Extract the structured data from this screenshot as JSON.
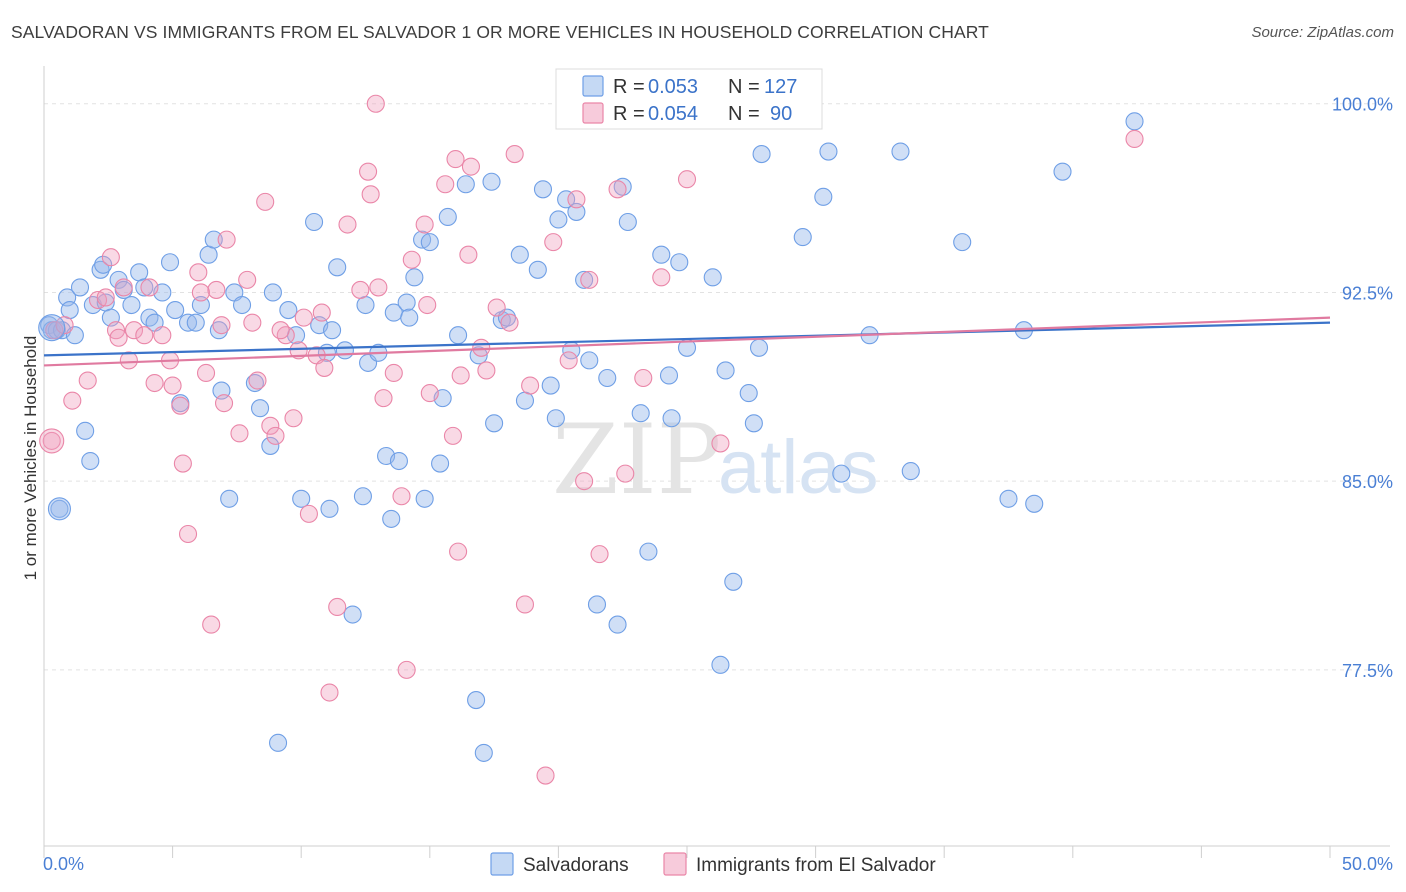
{
  "title": "SALVADORAN VS IMMIGRANTS FROM EL SALVADOR 1 OR MORE VEHICLES IN HOUSEHOLD CORRELATION CHART",
  "source": "Source: ZipAtlas.com",
  "watermark": {
    "zip": "ZIP",
    "atlas": "atlas"
  },
  "legend": {
    "r_label": "R =",
    "n_label": "N =",
    "rows": [
      {
        "r": "0.053",
        "n": "127",
        "color": "#6f9fe6"
      },
      {
        "r": "0.054",
        "n": "90",
        "color": "#ea86a8"
      }
    ]
  },
  "bottom_legend": [
    "Salvadorans",
    "Immigrants from El Salvador"
  ],
  "chart_data": {
    "type": "scatter",
    "xlabel": "",
    "ylabel": "1 or more Vehicles in Household",
    "xlim": [
      0,
      50
    ],
    "ylim": [
      70.5,
      101.5
    ],
    "x_tick_labels": [
      "0.0%",
      "50.0%"
    ],
    "y_ticks": [
      77.5,
      85.0,
      92.5,
      100.0
    ],
    "y_tick_labels": [
      "77.5%",
      "85.0%",
      "92.5%",
      "100.0%"
    ],
    "grid": true,
    "legend_position": "top-center",
    "series": [
      {
        "name": "Salvadorans",
        "color": "#6f9fe6",
        "fill": "rgba(150,185,235,0.45)",
        "R": 0.053,
        "N": 127,
        "trend": {
          "x": [
            0,
            50
          ],
          "y": [
            90.0,
            91.3
          ]
        },
        "points": [
          [
            0.2,
            91.2
          ],
          [
            0.3,
            91.0
          ],
          [
            0.5,
            91.0
          ],
          [
            0.6,
            83.9
          ],
          [
            0.7,
            91.0
          ],
          [
            0.9,
            92.3
          ],
          [
            1.0,
            91.8
          ],
          [
            1.2,
            90.8
          ],
          [
            1.4,
            92.7
          ],
          [
            1.6,
            87.0
          ],
          [
            1.8,
            85.8
          ],
          [
            1.9,
            92.0
          ],
          [
            2.2,
            93.4
          ],
          [
            2.3,
            93.6
          ],
          [
            2.4,
            92.1
          ],
          [
            2.6,
            91.5
          ],
          [
            2.9,
            93.0
          ],
          [
            3.1,
            92.6
          ],
          [
            3.4,
            92.0
          ],
          [
            3.7,
            93.3
          ],
          [
            3.9,
            92.7
          ],
          [
            4.1,
            91.5
          ],
          [
            4.3,
            91.3
          ],
          [
            4.6,
            92.5
          ],
          [
            4.9,
            93.7
          ],
          [
            5.1,
            91.8
          ],
          [
            5.3,
            88.1
          ],
          [
            5.6,
            91.3
          ],
          [
            5.9,
            91.3
          ],
          [
            6.1,
            92.0
          ],
          [
            6.4,
            94.0
          ],
          [
            6.6,
            94.6
          ],
          [
            6.8,
            91.0
          ],
          [
            6.9,
            88.6
          ],
          [
            7.2,
            84.3
          ],
          [
            7.4,
            92.5
          ],
          [
            7.7,
            92.0
          ],
          [
            8.2,
            88.9
          ],
          [
            8.4,
            87.9
          ],
          [
            8.9,
            92.5
          ],
          [
            8.8,
            86.4
          ],
          [
            9.1,
            74.6
          ],
          [
            9.5,
            91.8
          ],
          [
            9.8,
            90.8
          ],
          [
            10.0,
            84.3
          ],
          [
            10.5,
            95.3
          ],
          [
            10.7,
            91.2
          ],
          [
            11.0,
            90.1
          ],
          [
            11.2,
            91.0
          ],
          [
            11.4,
            93.5
          ],
          [
            11.7,
            90.2
          ],
          [
            12.0,
            79.7
          ],
          [
            11.1,
            83.9
          ],
          [
            12.4,
            84.4
          ],
          [
            12.5,
            92.0
          ],
          [
            12.6,
            89.7
          ],
          [
            13.0,
            90.1
          ],
          [
            13.3,
            86.0
          ],
          [
            13.5,
            83.5
          ],
          [
            13.6,
            91.7
          ],
          [
            13.8,
            85.8
          ],
          [
            14.1,
            92.1
          ],
          [
            14.2,
            91.5
          ],
          [
            14.4,
            93.1
          ],
          [
            14.7,
            94.6
          ],
          [
            15.0,
            94.5
          ],
          [
            14.8,
            84.3
          ],
          [
            15.4,
            85.7
          ],
          [
            15.5,
            88.3
          ],
          [
            15.7,
            95.5
          ],
          [
            16.1,
            90.8
          ],
          [
            16.4,
            96.8
          ],
          [
            16.8,
            76.3
          ],
          [
            16.9,
            90.0
          ],
          [
            17.1,
            74.2
          ],
          [
            17.5,
            87.3
          ],
          [
            17.4,
            96.9
          ],
          [
            17.8,
            91.4
          ],
          [
            18.0,
            91.5
          ],
          [
            18.5,
            94.0
          ],
          [
            18.7,
            88.2
          ],
          [
            19.2,
            93.4
          ],
          [
            19.4,
            96.6
          ],
          [
            19.7,
            88.8
          ],
          [
            20.0,
            95.4
          ],
          [
            19.9,
            87.5
          ],
          [
            20.3,
            96.2
          ],
          [
            20.5,
            90.2
          ],
          [
            20.7,
            95.7
          ],
          [
            21.0,
            93.0
          ],
          [
            21.2,
            89.8
          ],
          [
            21.5,
            80.1
          ],
          [
            21.9,
            89.1
          ],
          [
            22.3,
            79.3
          ],
          [
            22.5,
            96.7
          ],
          [
            22.7,
            95.3
          ],
          [
            23.2,
            87.7
          ],
          [
            23.5,
            82.2
          ],
          [
            24.0,
            94.0
          ],
          [
            24.3,
            89.2
          ],
          [
            24.4,
            87.5
          ],
          [
            24.7,
            93.7
          ],
          [
            25.0,
            90.3
          ],
          [
            26.0,
            93.1
          ],
          [
            26.3,
            77.7
          ],
          [
            26.5,
            89.4
          ],
          [
            26.8,
            81.0
          ],
          [
            27.4,
            88.5
          ],
          [
            27.6,
            87.3
          ],
          [
            27.8,
            90.3
          ],
          [
            27.9,
            98.0
          ],
          [
            29.5,
            94.7
          ],
          [
            30.3,
            96.3
          ],
          [
            30.5,
            98.1
          ],
          [
            31.0,
            85.3
          ],
          [
            32.1,
            90.8
          ],
          [
            33.3,
            98.1
          ],
          [
            33.7,
            85.4
          ],
          [
            35.7,
            94.5
          ],
          [
            37.5,
            84.3
          ],
          [
            38.1,
            91.0
          ],
          [
            38.5,
            84.1
          ],
          [
            39.6,
            97.3
          ],
          [
            42.4,
            99.3
          ]
        ]
      },
      {
        "name": "Immigrants from El Salvador",
        "color": "#ea86a8",
        "fill": "rgba(240,160,190,0.40)",
        "R": 0.054,
        "N": 90,
        "trend": {
          "x": [
            0,
            50
          ],
          "y": [
            89.6,
            91.5
          ]
        },
        "points": [
          [
            0.3,
            86.6
          ],
          [
            0.4,
            91.0
          ],
          [
            0.8,
            91.2
          ],
          [
            1.1,
            88.2
          ],
          [
            1.7,
            89.0
          ],
          [
            2.1,
            92.2
          ],
          [
            2.4,
            92.3
          ],
          [
            2.6,
            93.9
          ],
          [
            2.8,
            91.0
          ],
          [
            2.9,
            90.7
          ],
          [
            3.1,
            92.7
          ],
          [
            3.3,
            89.8
          ],
          [
            3.5,
            91.0
          ],
          [
            3.9,
            90.8
          ],
          [
            4.1,
            92.7
          ],
          [
            4.3,
            88.9
          ],
          [
            4.6,
            90.8
          ],
          [
            4.9,
            89.8
          ],
          [
            5.0,
            88.8
          ],
          [
            5.3,
            88.0
          ],
          [
            5.4,
            85.7
          ],
          [
            5.6,
            82.9
          ],
          [
            6.0,
            93.3
          ],
          [
            6.3,
            89.3
          ],
          [
            6.5,
            79.3
          ],
          [
            6.7,
            92.6
          ],
          [
            6.9,
            91.2
          ],
          [
            7.0,
            88.1
          ],
          [
            7.1,
            94.6
          ],
          [
            7.6,
            86.9
          ],
          [
            7.9,
            93.0
          ],
          [
            8.1,
            91.3
          ],
          [
            8.3,
            89.0
          ],
          [
            8.6,
            96.1
          ],
          [
            8.8,
            87.2
          ],
          [
            9.0,
            86.8
          ],
          [
            9.4,
            90.8
          ],
          [
            9.7,
            87.5
          ],
          [
            9.9,
            90.2
          ],
          [
            10.1,
            91.5
          ],
          [
            10.3,
            83.7
          ],
          [
            10.6,
            90.0
          ],
          [
            10.8,
            91.7
          ],
          [
            11.1,
            76.6
          ],
          [
            11.4,
            80.0
          ],
          [
            11.8,
            95.2
          ],
          [
            12.3,
            92.6
          ],
          [
            12.6,
            97.3
          ],
          [
            12.7,
            96.4
          ],
          [
            13.0,
            92.7
          ],
          [
            13.2,
            88.3
          ],
          [
            13.6,
            89.3
          ],
          [
            13.9,
            84.4
          ],
          [
            14.3,
            93.8
          ],
          [
            14.8,
            95.2
          ],
          [
            14.9,
            92.0
          ],
          [
            15.6,
            96.8
          ],
          [
            15.9,
            86.8
          ],
          [
            16.2,
            89.2
          ],
          [
            16.5,
            94.0
          ],
          [
            16.6,
            97.5
          ],
          [
            17.0,
            90.3
          ],
          [
            17.2,
            89.4
          ],
          [
            17.6,
            91.9
          ],
          [
            18.1,
            91.3
          ],
          [
            18.3,
            98.0
          ],
          [
            16.1,
            82.2
          ],
          [
            18.7,
            80.1
          ],
          [
            19.5,
            73.3
          ],
          [
            19.8,
            94.5
          ],
          [
            20.4,
            89.8
          ],
          [
            21.0,
            85.0
          ],
          [
            21.2,
            93.0
          ],
          [
            21.6,
            82.1
          ],
          [
            22.3,
            96.6
          ],
          [
            22.6,
            85.3
          ],
          [
            23.3,
            89.1
          ],
          [
            24.0,
            93.1
          ],
          [
            25.0,
            97.0
          ],
          [
            26.3,
            86.5
          ],
          [
            14.1,
            77.5
          ],
          [
            12.9,
            100.0
          ],
          [
            16.0,
            97.8
          ],
          [
            18.9,
            88.8
          ],
          [
            42.4,
            98.6
          ],
          [
            10.9,
            89.5
          ],
          [
            20.7,
            96.2
          ],
          [
            15.0,
            88.5
          ],
          [
            6.1,
            92.5
          ],
          [
            9.2,
            91.0
          ]
        ]
      }
    ]
  }
}
